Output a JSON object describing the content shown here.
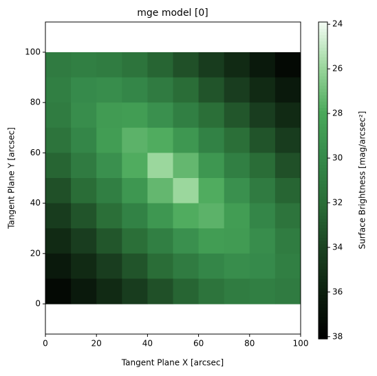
{
  "chart_data": {
    "type": "heatmap",
    "title": "mge model [0]",
    "x_label": "Tangent Plane X [arcsec]",
    "y_label": "Tangent Plane Y [arcsec]",
    "colorbar_label": "Surface Brightness [mag/arcsec²]",
    "x": [
      5,
      15,
      25,
      35,
      45,
      55,
      65,
      75,
      85,
      95
    ],
    "y": [
      95,
      85,
      75,
      65,
      55,
      45,
      35,
      25,
      15,
      5
    ],
    "z": [
      [
        31.0,
        30.7,
        30.9,
        31.5,
        32.4,
        33.4,
        34.4,
        35.4,
        36.4,
        37.5
      ],
      [
        30.7,
        29.9,
        29.7,
        30.2,
        31.0,
        32.0,
        33.2,
        34.3,
        35.4,
        36.4
      ],
      [
        30.9,
        29.7,
        28.8,
        28.7,
        29.5,
        30.7,
        31.9,
        33.1,
        34.3,
        35.4
      ],
      [
        31.5,
        30.2,
        28.7,
        27.5,
        27.8,
        29.1,
        30.5,
        31.9,
        33.2,
        34.4
      ],
      [
        32.4,
        31.0,
        29.5,
        27.8,
        25.9,
        27.3,
        29.1,
        30.7,
        32.0,
        33.4
      ],
      [
        33.4,
        32.0,
        30.7,
        29.1,
        27.3,
        25.9,
        27.8,
        29.5,
        31.0,
        32.4
      ],
      [
        34.4,
        33.2,
        31.9,
        30.5,
        29.1,
        27.8,
        27.5,
        28.7,
        30.2,
        31.5
      ],
      [
        35.4,
        34.3,
        33.1,
        31.9,
        30.7,
        29.5,
        28.7,
        28.8,
        29.7,
        30.9
      ],
      [
        36.4,
        35.4,
        34.3,
        33.2,
        32.0,
        31.0,
        30.2,
        29.7,
        29.9,
        30.7
      ],
      [
        37.5,
        36.4,
        35.4,
        34.4,
        33.4,
        32.4,
        31.5,
        30.9,
        30.7,
        31.0
      ]
    ],
    "xlim": [
      0,
      100
    ],
    "xticks": [
      0,
      20,
      40,
      60,
      80,
      100
    ],
    "ylim": [
      -12,
      112
    ],
    "yticks": [
      0,
      20,
      40,
      60,
      80,
      100
    ],
    "clim": [
      38.1,
      23.9
    ],
    "cticks": [
      24,
      26,
      28,
      30,
      32,
      34,
      36,
      38
    ],
    "colormap": [
      "#f4fcf4",
      "#9ad69c",
      "#4aa85a",
      "#35894a",
      "#2a6d37",
      "#1b4221",
      "#0c1e0e",
      "#000000"
    ]
  }
}
